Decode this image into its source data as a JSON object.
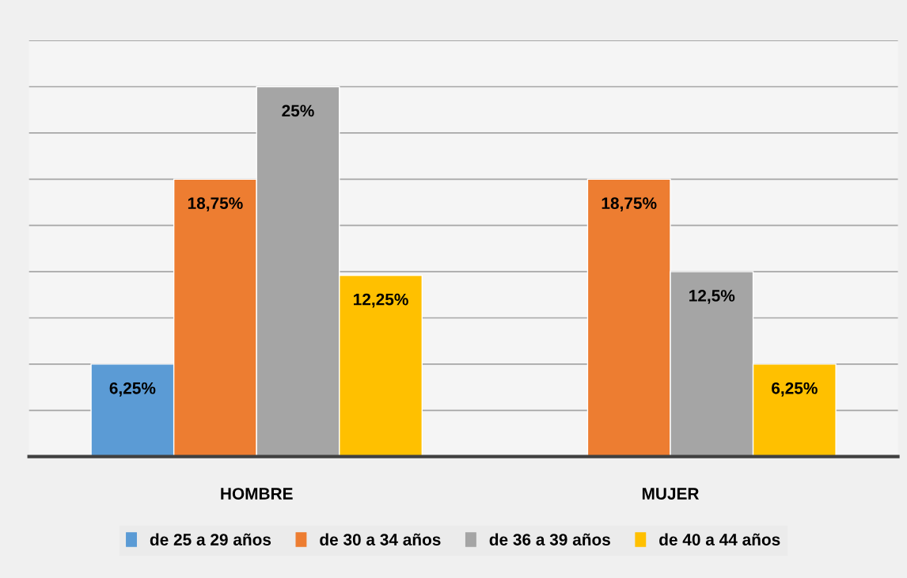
{
  "chart_data": {
    "type": "bar",
    "categories": [
      "HOMBRE",
      "MUJER"
    ],
    "series": [
      {
        "name": "de 25 a 29 años",
        "color": "#5b9bd5",
        "values": [
          6.25,
          null
        ],
        "value_labels": [
          "6,25%",
          null
        ]
      },
      {
        "name": "de 30 a 34 años",
        "color": "#ed7d31",
        "values": [
          18.75,
          18.75
        ],
        "value_labels": [
          "18,75%",
          "18,75%"
        ]
      },
      {
        "name": "de 36 a 39 años",
        "color": "#a5a5a5",
        "values": [
          25,
          12.5
        ],
        "value_labels": [
          "25%",
          "12,5%"
        ]
      },
      {
        "name": "de 40 a 44 años",
        "color": "#ffc000",
        "values": [
          12.25,
          6.25
        ],
        "value_labels": [
          "12,25%",
          "6,25%"
        ]
      }
    ],
    "ylim": [
      0,
      28.125
    ],
    "yticks": [
      {
        "value": 0,
        "label": null
      },
      {
        "value": 3.125,
        "label": null
      },
      {
        "value": 6.25,
        "label": null
      },
      {
        "value": 9.375,
        "label": null
      },
      {
        "value": 12.5,
        "label": null
      },
      {
        "value": 15.625,
        "label": null
      },
      {
        "value": 18.75,
        "label": null
      },
      {
        "value": 21.875,
        "label": null
      },
      {
        "value": 25,
        "label": null
      },
      {
        "value": 28.125,
        "label": null
      }
    ],
    "tick_labels": "x",
    "grid": "y",
    "legend": "bottom"
  }
}
